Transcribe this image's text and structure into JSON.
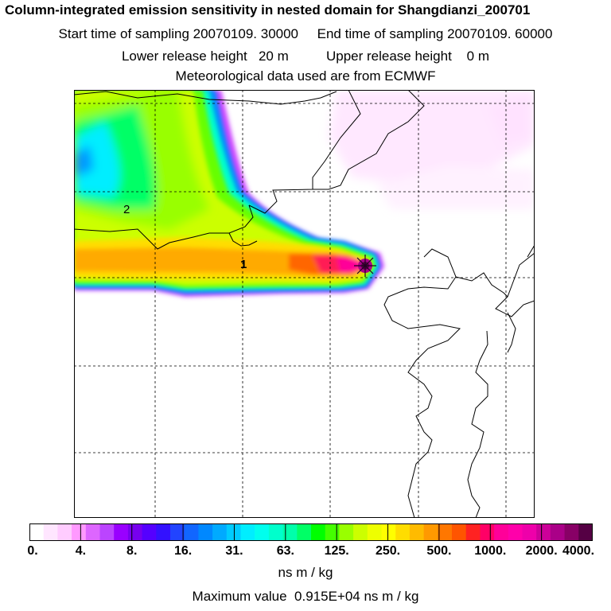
{
  "header": {
    "title": "Column-integrated emission sensitivity in nested domain for Shangdianzi_200701",
    "sampling": "Start time of sampling 20070109. 30000     End time of sampling 20070109. 60000",
    "release": "Lower release height   20 m          Upper release height    0 m",
    "met": "Meteorological data used are from ECMWF"
  },
  "map": {
    "labels": [
      "2",
      "1"
    ]
  },
  "colorbar": {
    "ticks": [
      "0.",
      "4.",
      "8.",
      "16.",
      "31.",
      "63.",
      "125.",
      "250.",
      "500.",
      "1000.",
      "2000.",
      "4000."
    ],
    "unit": "ns m / kg",
    "colors": [
      "#ffffff",
      "#ffe6ff",
      "#ffccff",
      "#ff99ff",
      "#dd66ff",
      "#bb44ff",
      "#9900ff",
      "#7700ee",
      "#5500ff",
      "#3311ff",
      "#2244ff",
      "#1166ff",
      "#0088ff",
      "#00aaff",
      "#00ccff",
      "#00eeff",
      "#00ffee",
      "#00ffcc",
      "#00ffaa",
      "#00ff66",
      "#00ff00",
      "#44ff00",
      "#99ff00",
      "#ccff00",
      "#eeff00",
      "#ffff00",
      "#ffdd00",
      "#ffbb00",
      "#ff9900",
      "#ff7700",
      "#ff5500",
      "#ff2222",
      "#ff0066",
      "#ff0099",
      "#ff00aa",
      "#ee00aa",
      "#cc0099",
      "#aa0088",
      "#880066",
      "#550044"
    ]
  },
  "footer": {
    "max_value": "Maximum value  0.915E+04 ns m / kg"
  }
}
